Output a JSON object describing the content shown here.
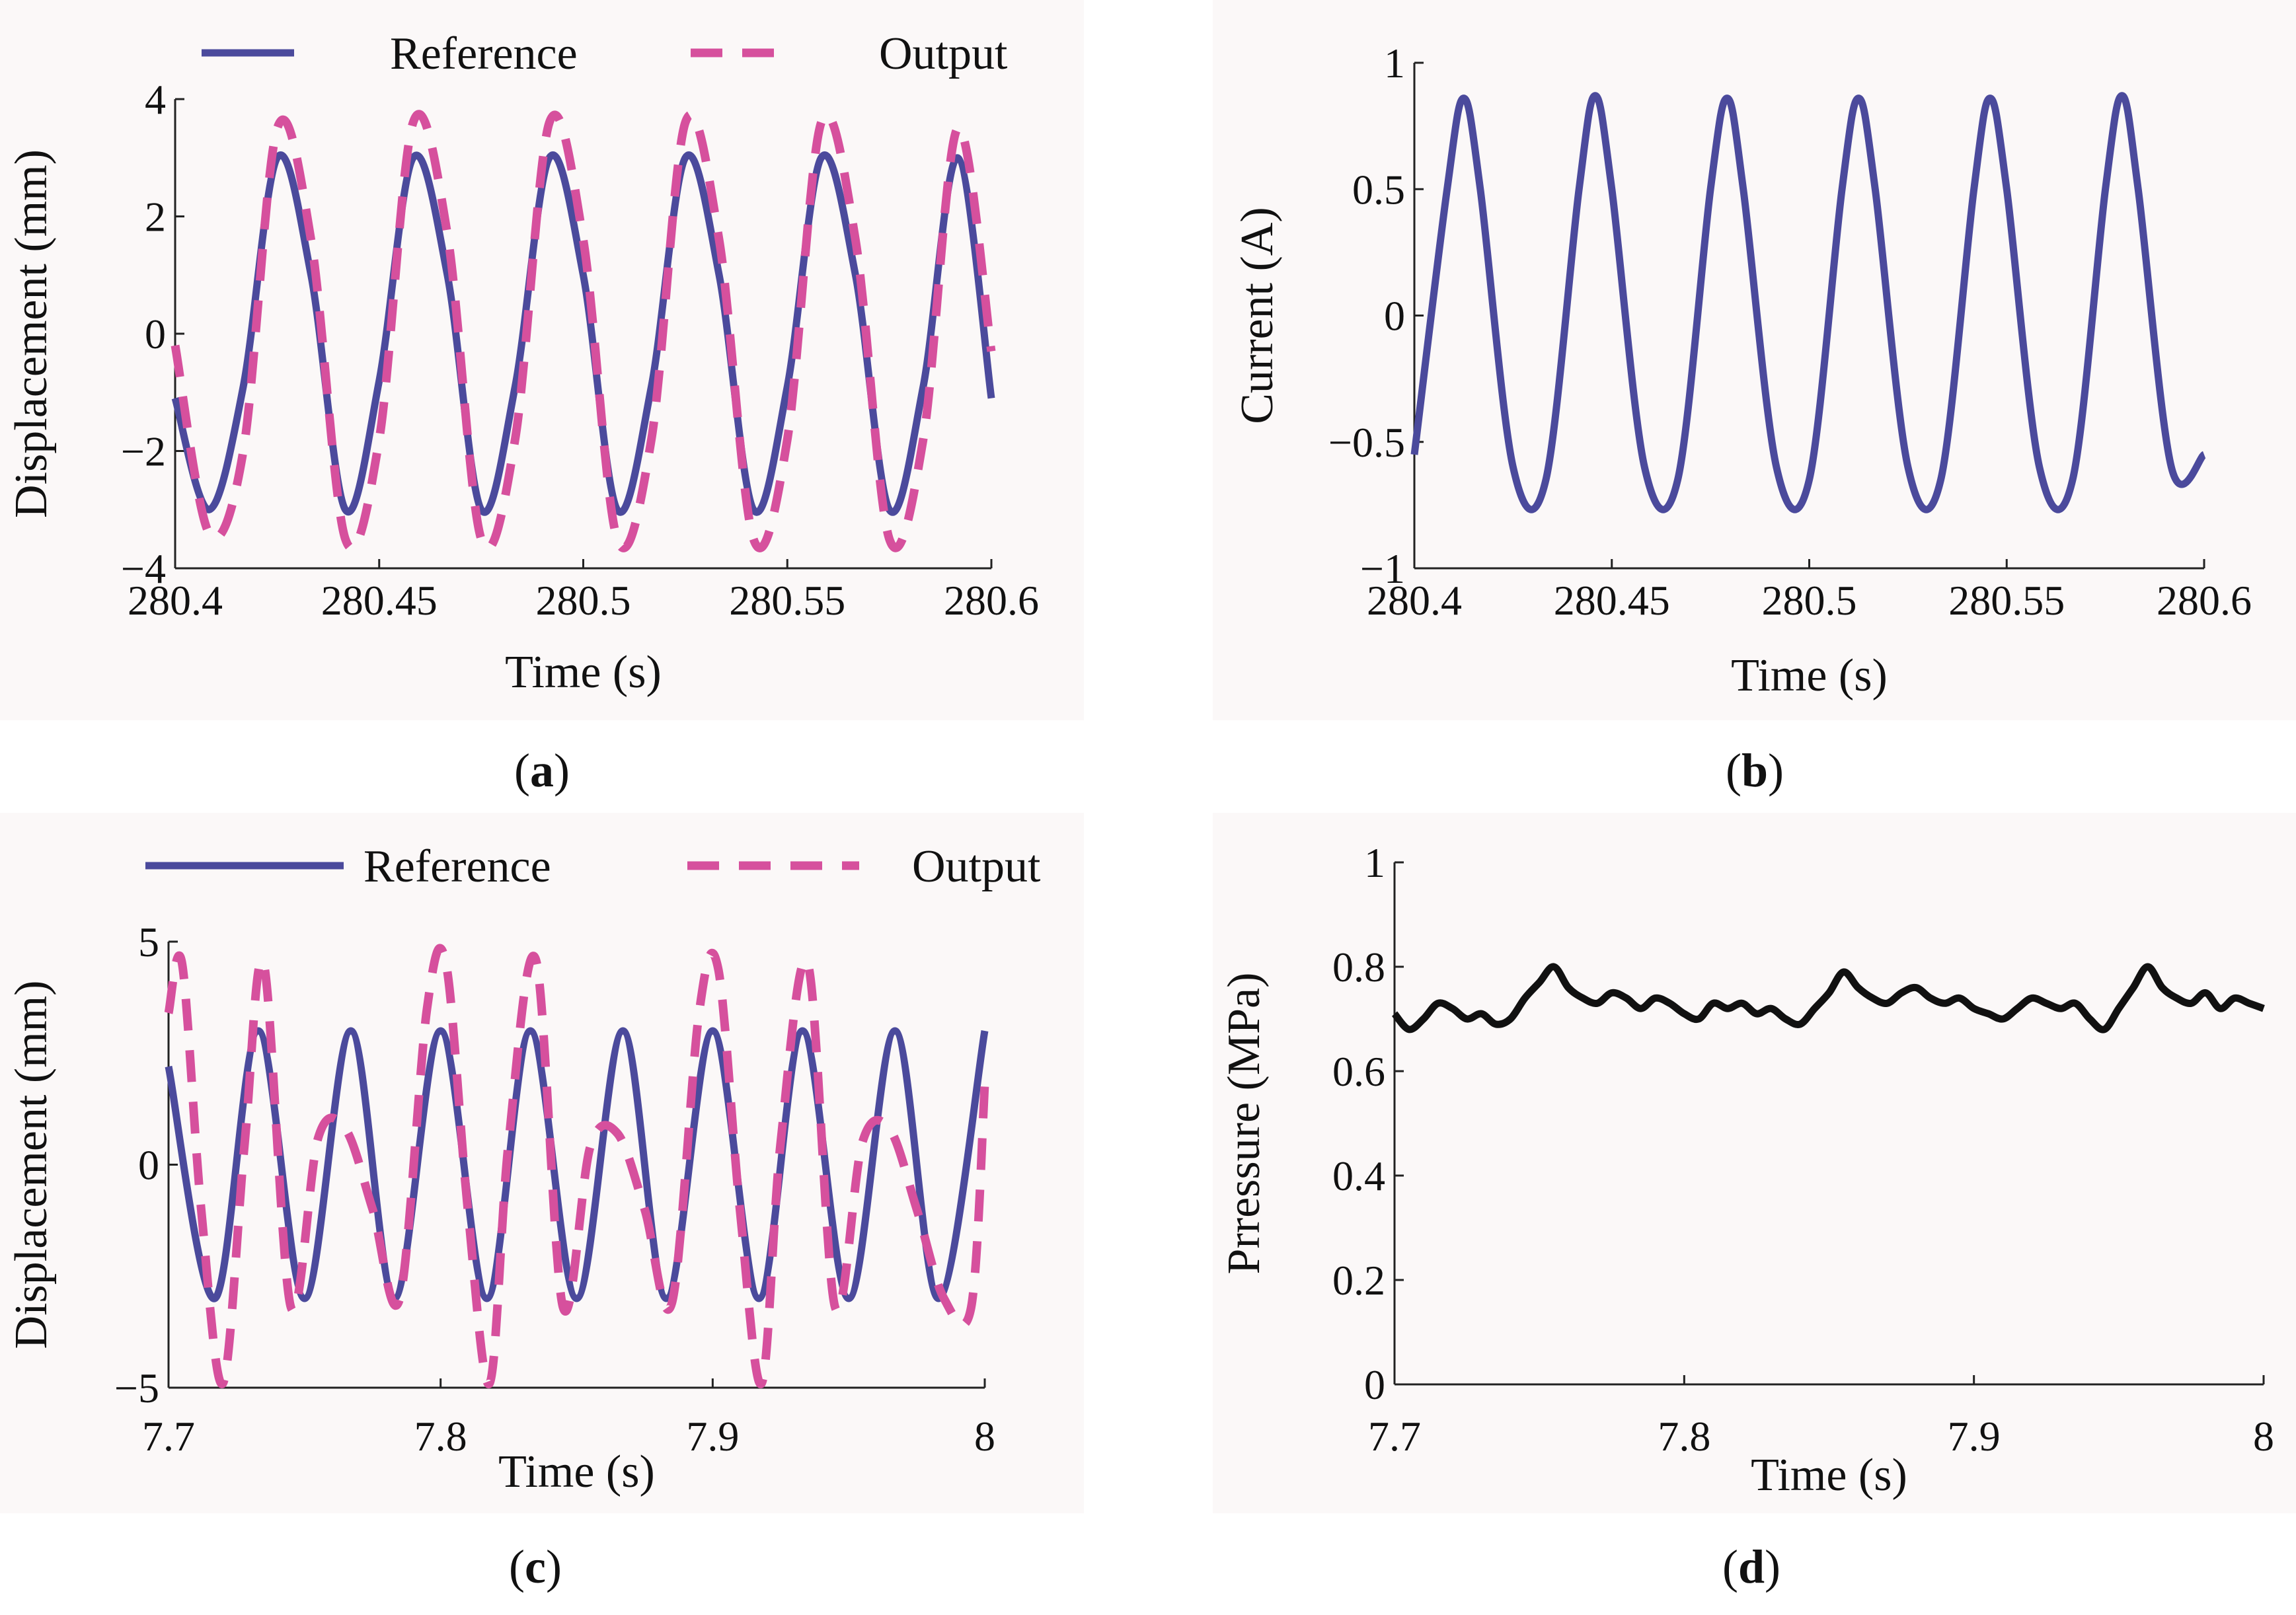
{
  "colors": {
    "reference": "#4B4A9C",
    "output": "#D6509D",
    "pressure": "#111111",
    "axis": "#222222",
    "panel_background": "#FBF8F8"
  },
  "chart_data": [
    {
      "id": "a",
      "type": "line",
      "caption_letter": "a",
      "xlabel": "Time (s)",
      "ylabel": "Displacement (mm)",
      "xlim": [
        280.4,
        280.6
      ],
      "ylim": [
        -4,
        4
      ],
      "x_ticks": [
        {
          "value": 280.4,
          "label": "280.4"
        },
        {
          "value": 280.45,
          "label": "280.45"
        },
        {
          "value": 280.5,
          "label": "280.5"
        },
        {
          "value": 280.55,
          "label": "280.55"
        },
        {
          "value": 280.6,
          "label": "280.6"
        }
      ],
      "y_ticks": [
        {
          "value": 4,
          "label": "4"
        },
        {
          "value": 2,
          "label": "2"
        },
        {
          "value": 0,
          "label": "0"
        },
        {
          "value": -2,
          "label": "−2"
        },
        {
          "value": -4,
          "label": "−4"
        }
      ],
      "legend": [
        {
          "label": "Reference",
          "style": "solid",
          "color_key": "reference"
        },
        {
          "label": "Output",
          "style": "dashed",
          "color_key": "output"
        }
      ],
      "series": [
        {
          "name": "Reference",
          "color_key": "reference",
          "style": "solid",
          "x": [
            280.4,
            280.4083,
            280.4167,
            280.425,
            280.4333,
            280.4417,
            280.45,
            280.4583,
            280.4667,
            280.475,
            280.4833,
            280.4917,
            280.5,
            280.5083,
            280.5167,
            280.525,
            280.5333,
            280.5417,
            280.55,
            280.5583,
            280.5667,
            280.575,
            280.5833,
            280.5917,
            280.6
          ],
          "y": [
            -1.1,
            -3.0,
            -0.9,
            3.0,
            1.0,
            -3.0,
            -0.8,
            3.0,
            1.0,
            -3.0,
            -0.9,
            3.0,
            1.0,
            -3.0,
            -0.9,
            3.0,
            1.0,
            -3.0,
            -0.9,
            3.0,
            1.0,
            -3.0,
            -0.9,
            3.0,
            -1.1
          ]
        },
        {
          "name": "Output",
          "color_key": "output",
          "style": "dashed",
          "x": [
            280.4,
            280.4083,
            280.4167,
            280.425,
            280.4333,
            280.4417,
            280.45,
            280.4583,
            280.4667,
            280.475,
            280.4833,
            280.4917,
            280.5,
            280.5083,
            280.5167,
            280.525,
            280.5333,
            280.5417,
            280.55,
            280.5583,
            280.5667,
            280.575,
            280.5833,
            280.5917,
            280.6
          ],
          "y": [
            -0.2,
            -3.4,
            -2.0,
            3.5,
            1.6,
            -3.5,
            -1.8,
            3.6,
            1.7,
            -3.5,
            -1.8,
            3.6,
            1.6,
            -3.5,
            -1.8,
            3.6,
            1.6,
            -3.5,
            -1.8,
            3.6,
            1.6,
            -3.5,
            -1.8,
            3.5,
            -0.3
          ]
        }
      ]
    },
    {
      "id": "b",
      "type": "line",
      "caption_letter": "b",
      "xlabel": "Time (s)",
      "ylabel": "Current (A)",
      "xlim": [
        280.4,
        280.6
      ],
      "ylim": [
        -1,
        1
      ],
      "x_ticks": [
        {
          "value": 280.4,
          "label": "280.4"
        },
        {
          "value": 280.45,
          "label": "280.45"
        },
        {
          "value": 280.5,
          "label": "280.5"
        },
        {
          "value": 280.55,
          "label": "280.55"
        },
        {
          "value": 280.6,
          "label": "280.6"
        }
      ],
      "y_ticks": [
        {
          "value": 1,
          "label": "1"
        },
        {
          "value": 0.5,
          "label": "0.5"
        },
        {
          "value": 0,
          "label": "0"
        },
        {
          "value": -0.5,
          "label": "−0.5"
        },
        {
          "value": -1,
          "label": "−1"
        }
      ],
      "legend": [],
      "series": [
        {
          "name": "Current",
          "color_key": "reference",
          "style": "solid",
          "x": [
            280.4,
            280.4083,
            280.4125,
            280.4167,
            280.425,
            280.4333,
            280.4417,
            280.4458,
            280.45,
            280.4583,
            280.4667,
            280.475,
            280.4792,
            280.4833,
            280.4917,
            280.5,
            280.5083,
            280.5125,
            280.5167,
            280.525,
            280.5333,
            280.5417,
            280.5458,
            280.55,
            280.5583,
            280.5667,
            280.575,
            280.5792,
            280.5833,
            280.5917,
            280.6
          ],
          "y": [
            -0.55,
            0.5,
            0.86,
            0.5,
            -0.6,
            -0.65,
            0.5,
            0.87,
            0.5,
            -0.6,
            -0.65,
            0.5,
            0.86,
            0.5,
            -0.6,
            -0.65,
            0.5,
            0.86,
            0.5,
            -0.6,
            -0.65,
            0.5,
            0.86,
            0.5,
            -0.6,
            -0.65,
            0.5,
            0.87,
            0.5,
            -0.6,
            -0.55
          ]
        }
      ]
    },
    {
      "id": "c",
      "type": "line",
      "caption_letter": "c",
      "xlabel": "Time (s)",
      "ylabel": "Displacement (mm)",
      "xlim": [
        7.7,
        8.0
      ],
      "ylim": [
        -5,
        5
      ],
      "x_ticks": [
        {
          "value": 7.7,
          "label": "7.7"
        },
        {
          "value": 7.8,
          "label": "7.8"
        },
        {
          "value": 7.9,
          "label": "7.9"
        },
        {
          "value": 8.0,
          "label": "8"
        }
      ],
      "y_ticks": [
        {
          "value": 5,
          "label": "5"
        },
        {
          "value": 0,
          "label": "0"
        },
        {
          "value": -5,
          "label": "−5"
        }
      ],
      "legend": [
        {
          "label": "Reference",
          "style": "solid",
          "color_key": "reference"
        },
        {
          "label": "Output",
          "style": "dashed",
          "color_key": "output"
        }
      ],
      "series": [
        {
          "name": "Reference",
          "color_key": "reference",
          "style": "solid",
          "x": [
            7.7,
            7.717,
            7.733,
            7.75,
            7.767,
            7.783,
            7.8,
            7.817,
            7.833,
            7.85,
            7.867,
            7.883,
            7.9,
            7.917,
            7.933,
            7.95,
            7.967,
            7.983,
            8.0
          ],
          "y": [
            2.2,
            -3.0,
            3.0,
            -3.0,
            3.0,
            -3.0,
            3.0,
            -3.0,
            3.0,
            -3.0,
            3.0,
            -3.0,
            3.0,
            -3.0,
            3.0,
            -3.0,
            3.0,
            -3.0,
            3.0
          ]
        },
        {
          "name": "Output",
          "color_key": "output",
          "style": "dashed",
          "x": [
            7.7,
            7.705,
            7.712,
            7.72,
            7.728,
            7.735,
            7.745,
            7.755,
            7.765,
            7.775,
            7.785,
            7.795,
            7.802,
            7.81,
            7.818,
            7.825,
            7.835,
            7.845,
            7.855,
            7.865,
            7.875,
            7.885,
            7.895,
            7.902,
            7.91,
            7.918,
            7.925,
            7.935,
            7.945,
            7.955,
            7.965,
            7.975,
            7.985,
            7.995,
            8.0
          ],
          "y": [
            3.4,
            4.5,
            -1.0,
            -4.9,
            0.5,
            4.5,
            -3.2,
            0.6,
            0.8,
            -1.0,
            -3.0,
            3.5,
            4.5,
            -1.0,
            -4.9,
            0.5,
            4.6,
            -3.2,
            0.4,
            0.7,
            -1.0,
            -3.1,
            3.4,
            4.4,
            -1.0,
            -4.9,
            0.5,
            4.5,
            -3.2,
            0.5,
            0.8,
            -1.0,
            -3.0,
            -3.2,
            1.8
          ]
        }
      ]
    },
    {
      "id": "d",
      "type": "line",
      "caption_letter": "d",
      "xlabel": "Time (s)",
      "ylabel": "Prressure (MPa)",
      "xlim": [
        7.7,
        8.0
      ],
      "ylim": [
        0,
        1
      ],
      "x_ticks": [
        {
          "value": 7.7,
          "label": "7.7"
        },
        {
          "value": 7.8,
          "label": "7.8"
        },
        {
          "value": 7.9,
          "label": "7.9"
        },
        {
          "value": 8.0,
          "label": "8"
        }
      ],
      "y_ticks": [
        {
          "value": 1,
          "label": "1"
        },
        {
          "value": 0.8,
          "label": "0.8"
        },
        {
          "value": 0.6,
          "label": "0.6"
        },
        {
          "value": 0.4,
          "label": "0.4"
        },
        {
          "value": 0.2,
          "label": "0.2"
        },
        {
          "value": 0,
          "label": "0"
        }
      ],
      "legend": [],
      "series": [
        {
          "name": "Pressure",
          "color_key": "pressure",
          "style": "solid",
          "x": [
            7.7,
            7.705,
            7.71,
            7.715,
            7.72,
            7.725,
            7.73,
            7.735,
            7.74,
            7.745,
            7.75,
            7.755,
            7.76,
            7.765,
            7.77,
            7.775,
            7.78,
            7.785,
            7.79,
            7.795,
            7.8,
            7.805,
            7.81,
            7.815,
            7.82,
            7.825,
            7.83,
            7.835,
            7.84,
            7.845,
            7.85,
            7.855,
            7.86,
            7.865,
            7.87,
            7.875,
            7.88,
            7.885,
            7.89,
            7.895,
            7.9,
            7.905,
            7.91,
            7.915,
            7.92,
            7.925,
            7.93,
            7.935,
            7.94,
            7.945,
            7.95,
            7.955,
            7.96,
            7.965,
            7.97,
            7.975,
            7.98,
            7.985,
            7.99,
            7.995,
            8.0
          ],
          "y": [
            0.71,
            0.68,
            0.7,
            0.73,
            0.72,
            0.7,
            0.71,
            0.69,
            0.7,
            0.74,
            0.77,
            0.8,
            0.76,
            0.74,
            0.73,
            0.75,
            0.74,
            0.72,
            0.74,
            0.73,
            0.71,
            0.7,
            0.73,
            0.72,
            0.73,
            0.71,
            0.72,
            0.7,
            0.69,
            0.72,
            0.75,
            0.79,
            0.76,
            0.74,
            0.73,
            0.75,
            0.76,
            0.74,
            0.73,
            0.74,
            0.72,
            0.71,
            0.7,
            0.72,
            0.74,
            0.73,
            0.72,
            0.73,
            0.7,
            0.68,
            0.72,
            0.76,
            0.8,
            0.76,
            0.74,
            0.73,
            0.75,
            0.72,
            0.74,
            0.73,
            0.72
          ]
        }
      ]
    }
  ]
}
